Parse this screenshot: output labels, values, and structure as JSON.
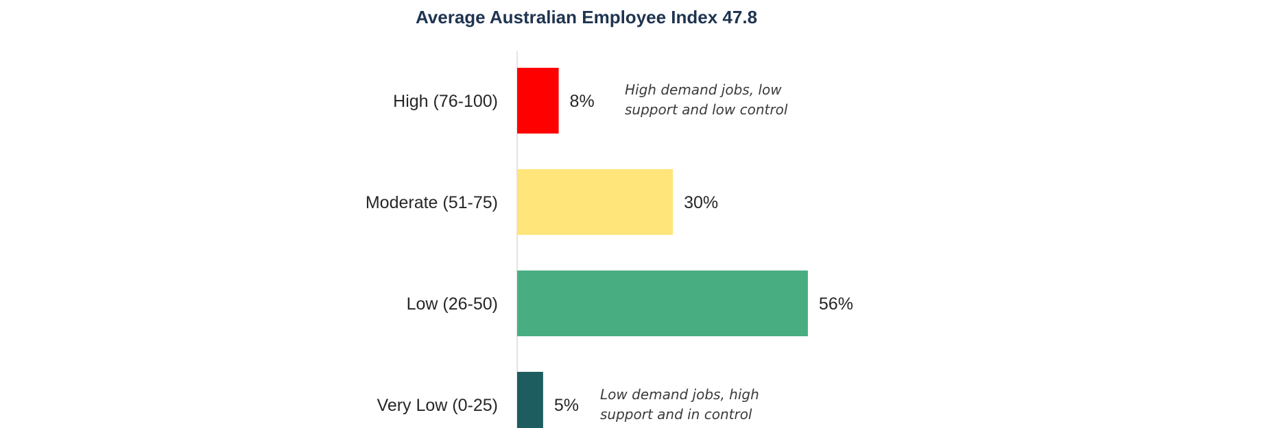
{
  "chart_data": {
    "type": "bar",
    "orientation": "horizontal",
    "title": "Average Australian Employee Index 47.8",
    "categories": [
      "High (76-100)",
      "Moderate (51-75)",
      "Low (26-50)",
      "Very Low (0-25)"
    ],
    "values": [
      8,
      30,
      56,
      5
    ],
    "value_labels": [
      "8%",
      "30%",
      "56%",
      "5%"
    ],
    "unit": "%",
    "colors": [
      "#ff0000",
      "#ffe57a",
      "#48ae82",
      "#1d5c5f"
    ],
    "grid": false,
    "annotations": [
      {
        "category": "High (76-100)",
        "lines": [
          "High demand jobs, low",
          "support and low control"
        ]
      },
      {
        "category": "Very Low (0-25)",
        "lines": [
          "Low demand jobs, high",
          "support and in control"
        ]
      }
    ]
  }
}
